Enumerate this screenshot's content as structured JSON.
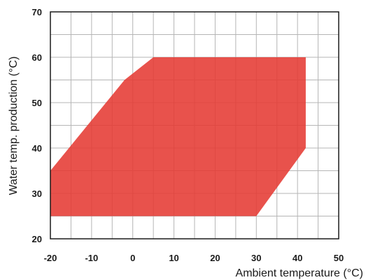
{
  "chart_data": {
    "type": "area",
    "title": "",
    "xlabel": "Ambient temperature (°C)",
    "ylabel": "Water temp. production (°C)",
    "xlim": [
      -20,
      50
    ],
    "ylim": [
      20,
      70
    ],
    "x_ticks": [
      -20,
      -10,
      0,
      10,
      20,
      30,
      40,
      50
    ],
    "y_ticks": [
      20,
      30,
      40,
      50,
      60,
      70
    ],
    "x_minor_step": 5,
    "y_minor_step": 5,
    "grid": true,
    "fill_color": "#e53a33",
    "region": [
      {
        "x": -20,
        "y": 25
      },
      {
        "x": -20,
        "y": 35
      },
      {
        "x": -2,
        "y": 55
      },
      {
        "x": 5,
        "y": 60
      },
      {
        "x": 42,
        "y": 60
      },
      {
        "x": 42,
        "y": 40
      },
      {
        "x": 30,
        "y": 25
      }
    ]
  }
}
